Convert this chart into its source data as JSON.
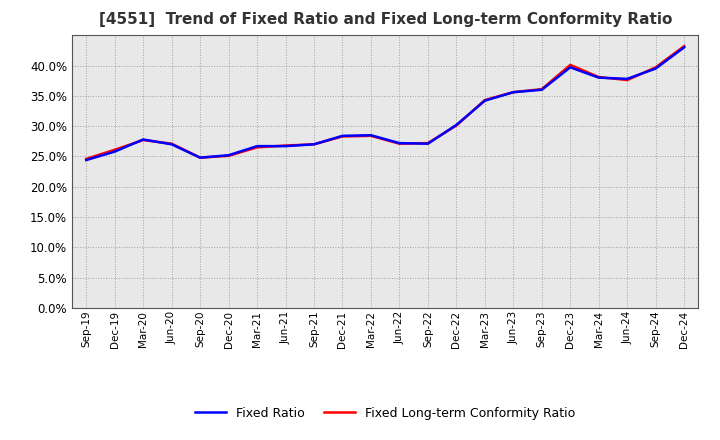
{
  "title": "[4551]  Trend of Fixed Ratio and Fixed Long-term Conformity Ratio",
  "x_labels": [
    "Sep-19",
    "Dec-19",
    "Mar-20",
    "Jun-20",
    "Sep-20",
    "Dec-20",
    "Mar-21",
    "Jun-21",
    "Sep-21",
    "Dec-21",
    "Mar-22",
    "Jun-22",
    "Sep-22",
    "Dec-22",
    "Mar-23",
    "Jun-23",
    "Sep-23",
    "Dec-23",
    "Mar-24",
    "Jun-24",
    "Sep-24",
    "Dec-24"
  ],
  "fixed_ratio": [
    0.244,
    0.258,
    0.278,
    0.27,
    0.248,
    0.252,
    0.267,
    0.267,
    0.27,
    0.284,
    0.285,
    0.272,
    0.271,
    0.302,
    0.342,
    0.356,
    0.36,
    0.397,
    0.38,
    0.378,
    0.395,
    0.43
  ],
  "fixed_lt_ratio": [
    0.246,
    0.261,
    0.277,
    0.271,
    0.248,
    0.251,
    0.265,
    0.268,
    0.27,
    0.283,
    0.284,
    0.271,
    0.272,
    0.301,
    0.343,
    0.356,
    0.361,
    0.401,
    0.381,
    0.376,
    0.397,
    0.432
  ],
  "ylim": [
    0.0,
    0.45
  ],
  "yticks": [
    0.0,
    0.05,
    0.1,
    0.15,
    0.2,
    0.25,
    0.3,
    0.35,
    0.4
  ],
  "fixed_ratio_color": "#0000ff",
  "fixed_lt_ratio_color": "#ff0000",
  "plot_background": "#e8e8e8",
  "grid_color": "#a0a0a0",
  "legend_fixed_ratio": "Fixed Ratio",
  "legend_fixed_lt_ratio": "Fixed Long-term Conformity Ratio",
  "line_width": 1.8
}
